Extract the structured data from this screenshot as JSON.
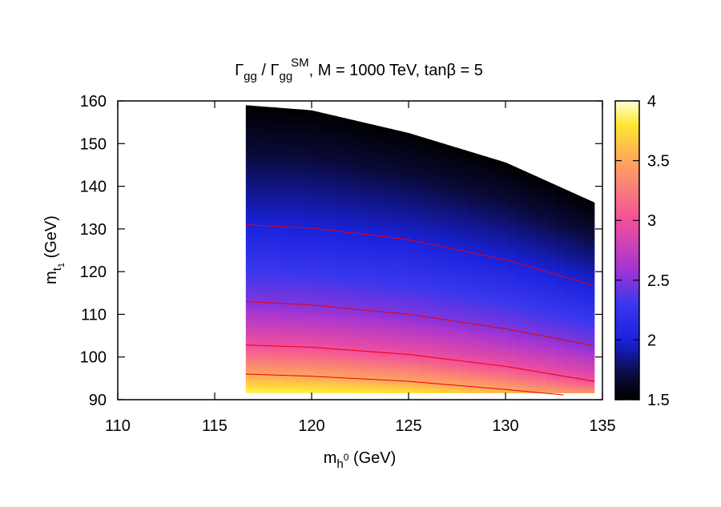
{
  "chart_data": {
    "type": "heatmap",
    "title": {
      "prefix_symbol": "Γ",
      "prefix_sub": "gg",
      "sep": " / ",
      "ref_symbol": "Γ",
      "ref_sub": "gg",
      "ref_sup": "SM",
      "rest": ",  M = 1000 TeV,  tanβ = 5"
    },
    "xlabel": {
      "base": "m",
      "sub": "h",
      "subsup": "0",
      "unit": " (GeV)"
    },
    "ylabel": {
      "base": "m",
      "sub": "t",
      "subsub": "1",
      "unit": " (GeV)"
    },
    "xlim": [
      110,
      135
    ],
    "ylim": [
      90,
      160
    ],
    "xticks": [
      110,
      115,
      120,
      125,
      130,
      135
    ],
    "yticks": [
      90,
      100,
      110,
      120,
      130,
      140,
      150,
      160
    ],
    "x_tick_labels": [
      "110",
      "115",
      "120",
      "125",
      "130",
      "135"
    ],
    "y_tick_labels": [
      "90",
      "100",
      "110",
      "120",
      "130",
      "140",
      "150",
      "160"
    ],
    "region": {
      "x_min": 116.6,
      "x_max": 134.6,
      "upper_boundary": [
        [
          116.6,
          159
        ],
        [
          120,
          157.8
        ],
        [
          125,
          152.5
        ],
        [
          130,
          145.6
        ],
        [
          134.6,
          136.2
        ]
      ],
      "lower_boundary_y": 91.5
    },
    "colorbar": {
      "range": [
        1.5,
        4
      ],
      "ticks": [
        1.5,
        2,
        2.5,
        3,
        3.5,
        4
      ],
      "tick_labels": [
        "1.5",
        "2",
        "2.5",
        "3",
        "3.5",
        "4"
      ],
      "stops": [
        {
          "value": 1.5,
          "color": "#000000"
        },
        {
          "value": 1.7,
          "color": "#0a0a3a"
        },
        {
          "value": 2.0,
          "color": "#1a22dc"
        },
        {
          "value": 2.3,
          "color": "#3a37ee"
        },
        {
          "value": 2.6,
          "color": "#a535d2"
        },
        {
          "value": 3.0,
          "color": "#f24f9c"
        },
        {
          "value": 3.5,
          "color": "#ffa65c"
        },
        {
          "value": 3.8,
          "color": "#ffe632"
        },
        {
          "value": 4.0,
          "color": "#ffffd8"
        }
      ]
    },
    "contours": {
      "color": "#e8000b",
      "levels": [
        {
          "value": 2,
          "points": [
            [
              116.6,
              131
            ],
            [
              120,
              130.2
            ],
            [
              125,
              127.5
            ],
            [
              130,
              122.8
            ],
            [
              134.6,
              116.7
            ]
          ]
        },
        {
          "value": 2.5,
          "points": [
            [
              116.6,
              113
            ],
            [
              120,
              112.2
            ],
            [
              125,
              110
            ],
            [
              130,
              106.6
            ],
            [
              134.6,
              102.6
            ]
          ]
        },
        {
          "value": 3,
          "points": [
            [
              116.6,
              102.8
            ],
            [
              120,
              102.3
            ],
            [
              125,
              100.6
            ],
            [
              130,
              97.8
            ],
            [
              134.6,
              94.3
            ]
          ]
        },
        {
          "value": 3.5,
          "points": [
            [
              116.6,
              96
            ],
            [
              120,
              95.5
            ],
            [
              125,
              94.3
            ],
            [
              130,
              92.4
            ],
            [
              133,
              91.1
            ]
          ]
        }
      ]
    }
  }
}
